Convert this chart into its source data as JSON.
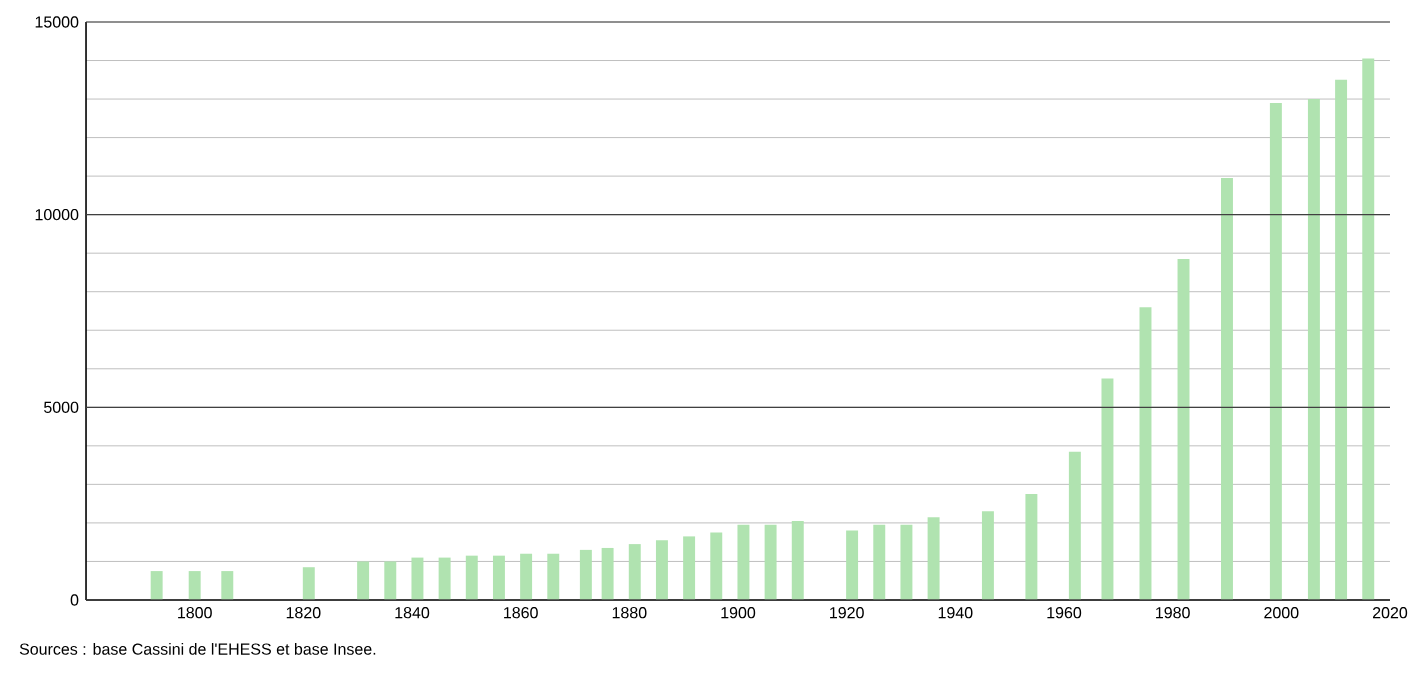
{
  "chart_data": {
    "type": "bar",
    "color": "#b0e3b0",
    "x": [
      1793,
      1800,
      1806,
      1821,
      1831,
      1836,
      1841,
      1846,
      1851,
      1856,
      1861,
      1866,
      1872,
      1876,
      1881,
      1886,
      1891,
      1896,
      1901,
      1906,
      1911,
      1921,
      1926,
      1931,
      1936,
      1946,
      1954,
      1962,
      1968,
      1975,
      1982,
      1990,
      1999,
      2006,
      2011,
      2016
    ],
    "values": [
      750,
      750,
      750,
      850,
      1000,
      1000,
      1100,
      1100,
      1150,
      1150,
      1200,
      1200,
      1300,
      1350,
      1450,
      1550,
      1650,
      1750,
      1950,
      1950,
      2050,
      1800,
      1950,
      1950,
      2150,
      2300,
      2750,
      3850,
      5750,
      7600,
      8850,
      10950,
      12900,
      13000,
      13500,
      14050
    ],
    "xlim": [
      1780,
      2020
    ],
    "ylim": [
      0,
      15000
    ],
    "xticks": [
      1800,
      1820,
      1840,
      1860,
      1880,
      1900,
      1920,
      1940,
      1960,
      1980,
      2000,
      2020
    ],
    "yticks": [
      0,
      {
        "value": 1000,
        "label": null
      },
      {
        "value": 2000,
        "label": null
      },
      {
        "value": 3000,
        "label": null
      },
      {
        "value": 4000,
        "label": null
      },
      5000,
      {
        "value": 6000,
        "label": null
      },
      {
        "value": 7000,
        "label": null
      },
      {
        "value": 8000,
        "label": null
      },
      {
        "value": 9000,
        "label": null
      },
      10000,
      {
        "value": 11000,
        "label": null
      },
      {
        "value": 12000,
        "label": null
      },
      {
        "value": 13000,
        "label": null
      },
      {
        "value": 14000,
        "label": null
      },
      15000
    ],
    "grid": "y",
    "annotations": [
      "Sources : base Cassini de l'EHESS et base Insee."
    ]
  }
}
